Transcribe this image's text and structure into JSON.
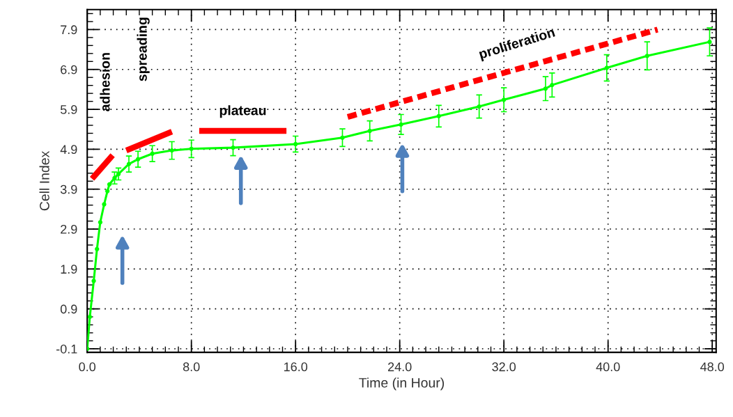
{
  "chart_data": {
    "type": "line",
    "xlabel": "Time (in Hour)",
    "ylabel": "Cell Index",
    "xlim": [
      0,
      48.3
    ],
    "ylim": [
      -0.19,
      8.4
    ],
    "xticks": [
      {
        "value": 0,
        "label": "0.0"
      },
      {
        "value": 8,
        "label": "8.0"
      },
      {
        "value": 16,
        "label": "16.0"
      },
      {
        "value": 24,
        "label": "24.0"
      },
      {
        "value": 32,
        "label": "32.0"
      },
      {
        "value": 40,
        "label": "40.0"
      },
      {
        "value": 48,
        "label": "48.0"
      }
    ],
    "yticks": [
      -0.1,
      0.9,
      1.9,
      2.9,
      3.9,
      4.9,
      5.9,
      6.9,
      7.9
    ],
    "grid": true,
    "marker": "circle",
    "line_style": "solid",
    "series": [
      {
        "color": "#00ff00",
        "x": [
          0.0,
          0.2,
          0.5,
          0.75,
          1.0,
          1.3,
          1.55,
          1.7,
          2.1,
          2.4,
          3.2,
          3.9,
          5.0,
          6.5,
          8.0,
          11.2,
          16.0,
          19.6,
          21.7,
          24.1,
          27.0,
          30.1,
          32.0,
          35.2,
          35.7,
          39.9,
          43.0,
          47.8
        ],
        "values": [
          -0.1,
          0.7,
          1.6,
          2.4,
          3.07,
          3.52,
          3.85,
          4.02,
          4.18,
          4.28,
          4.53,
          4.65,
          4.79,
          4.87,
          4.91,
          4.94,
          5.03,
          5.19,
          5.36,
          5.52,
          5.73,
          5.97,
          6.14,
          6.42,
          6.51,
          6.94,
          7.24,
          7.59
        ],
        "errors": [
          null,
          null,
          null,
          null,
          null,
          null,
          null,
          null,
          0.15,
          0.15,
          0.2,
          0.2,
          0.2,
          0.22,
          0.22,
          0.2,
          0.2,
          0.22,
          0.25,
          0.25,
          0.27,
          0.29,
          0.3,
          0.3,
          0.3,
          0.33,
          0.35,
          0.35
        ]
      },
      {
        "type": "line",
        "color": "#ff0000",
        "marker": "none",
        "x": [
          0.37,
          1.95
        ],
        "values": [
          4.16,
          4.75
        ]
      },
      {
        "type": "line",
        "color": "#ff0000",
        "marker": "none",
        "x": [
          3.0,
          6.5
        ],
        "values": [
          4.87,
          5.34
        ]
      },
      {
        "type": "line",
        "color": "#ff0000",
        "marker": "none",
        "x": [
          8.6,
          15.3
        ],
        "values": [
          5.36,
          5.36
        ]
      },
      {
        "type": "line",
        "color": "#ff0000",
        "marker": "none",
        "line_style": "dashed",
        "x": [
          20.0,
          43.8
        ],
        "values": [
          5.71,
          7.9
        ]
      }
    ],
    "annotations": [
      "adhesion",
      "spreading",
      "plateau",
      "proliferation"
    ]
  }
}
